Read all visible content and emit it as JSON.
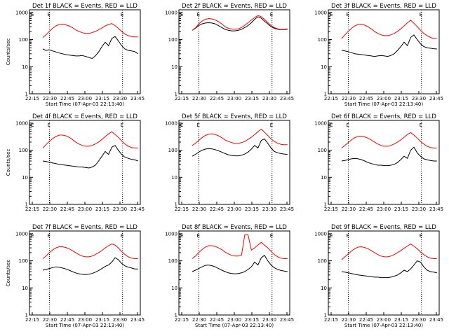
{
  "chart_data": [
    {
      "type": "line",
      "title": "Det 1f BLACK = Events, RED = LLD",
      "xlabel": "Start Time (07-Apr-03 22:13:40)",
      "ylabel": "Counts/sec",
      "series": [
        {
          "color": "#000000",
          "values": [
            45,
            40,
            42,
            38,
            35,
            32,
            30,
            28,
            27,
            26,
            25,
            25,
            26,
            24,
            22,
            20,
            25,
            35,
            55,
            80,
            60,
            110,
            130,
            90,
            60,
            45,
            40,
            38,
            36,
            30
          ]
        },
        {
          "color": "#ff0000",
          "values": [
            120,
            150,
            200,
            260,
            320,
            360,
            370,
            350,
            320,
            280,
            230,
            200,
            180,
            170,
            170,
            180,
            200,
            230,
            270,
            320,
            360,
            390,
            330,
            260,
            200,
            160,
            140,
            130,
            125,
            125
          ]
        }
      ]
    },
    {
      "type": "line",
      "title": "Det 2f BLACK = Events, RED = LLD",
      "xlabel": "",
      "ylabel": "",
      "series": [
        {
          "color": "#000000",
          "values": [
            220,
            260,
            330,
            380,
            410,
            420,
            410,
            380,
            330,
            280,
            240,
            220,
            210,
            210,
            220,
            240,
            280,
            330,
            420,
            560,
            700,
            620,
            480,
            380,
            300,
            260,
            240,
            235,
            235,
            240
          ]
        },
        {
          "color": "#ff0000",
          "values": [
            220,
            270,
            380,
            480,
            560,
            600,
            580,
            530,
            460,
            380,
            300,
            260,
            245,
            240,
            250,
            280,
            340,
            420,
            530,
            650,
            780,
            700,
            560,
            430,
            330,
            280,
            250,
            240,
            240,
            250
          ]
        }
      ]
    },
    {
      "type": "line",
      "title": "Det 3f BLACK = Events, RED = LLD",
      "xlabel": "Start Time (07-Apr-03 22:13:40)",
      "ylabel": "",
      "series": [
        {
          "color": "#000000",
          "values": [
            40,
            38,
            36,
            33,
            30,
            29,
            28,
            27,
            26,
            25,
            24,
            25,
            26,
            25,
            24,
            26,
            30,
            40,
            55,
            80,
            60,
            120,
            150,
            100,
            70,
            55,
            50,
            48,
            46,
            45
          ]
        },
        {
          "color": "#ff0000",
          "values": [
            110,
            150,
            200,
            260,
            320,
            360,
            370,
            340,
            300,
            250,
            200,
            170,
            150,
            140,
            140,
            150,
            170,
            200,
            250,
            320,
            420,
            520,
            400,
            300,
            220,
            170,
            140,
            120,
            110,
            110
          ]
        }
      ]
    },
    {
      "type": "line",
      "title": "Det 4f BLACK = Events, RED = LLD",
      "xlabel": "",
      "ylabel": "Counts/sec",
      "series": [
        {
          "color": "#000000",
          "values": [
            40,
            38,
            36,
            34,
            32,
            30,
            29,
            28,
            27,
            26,
            25,
            24,
            24,
            23,
            22,
            24,
            28,
            40,
            60,
            90,
            70,
            130,
            150,
            100,
            70,
            55,
            50,
            46,
            44,
            40
          ]
        },
        {
          "color": "#ff0000",
          "values": [
            120,
            160,
            210,
            270,
            320,
            360,
            360,
            340,
            300,
            250,
            200,
            170,
            150,
            140,
            140,
            150,
            170,
            200,
            250,
            320,
            400,
            480,
            380,
            300,
            220,
            170,
            140,
            125,
            120,
            120
          ]
        }
      ]
    },
    {
      "type": "line",
      "title": "Det 5f BLACK = Events, RED = LLD",
      "xlabel": "",
      "ylabel": "",
      "series": [
        {
          "color": "#000000",
          "values": [
            60,
            70,
            85,
            100,
            110,
            115,
            112,
            105,
            95,
            85,
            75,
            68,
            64,
            62,
            62,
            65,
            72,
            85,
            110,
            150,
            120,
            230,
            260,
            180,
            120,
            90,
            80,
            75,
            72,
            70
          ]
        },
        {
          "color": "#ff0000",
          "values": [
            150,
            180,
            230,
            290,
            350,
            390,
            400,
            380,
            340,
            290,
            240,
            210,
            190,
            180,
            180,
            190,
            210,
            250,
            300,
            380,
            480,
            600,
            460,
            350,
            260,
            210,
            180,
            165,
            160,
            160
          ]
        }
      ]
    },
    {
      "type": "line",
      "title": "Det 6f BLACK = Events, RED = LLD",
      "xlabel": "",
      "ylabel": "",
      "series": [
        {
          "color": "#000000",
          "values": [
            40,
            42,
            45,
            48,
            50,
            48,
            45,
            40,
            35,
            32,
            30,
            28,
            28,
            27,
            27,
            28,
            30,
            35,
            45,
            60,
            50,
            100,
            130,
            80,
            60,
            48,
            44,
            42,
            40,
            40
          ]
        },
        {
          "color": "#ff0000",
          "values": [
            120,
            150,
            190,
            240,
            290,
            320,
            330,
            310,
            280,
            240,
            200,
            170,
            150,
            140,
            140,
            150,
            170,
            200,
            240,
            300,
            380,
            450,
            360,
            280,
            210,
            170,
            140,
            125,
            120,
            120
          ]
        }
      ]
    },
    {
      "type": "line",
      "title": "Det 7f BLACK = Events, RED = LLD",
      "xlabel": "Start Time (07-Apr-03 22:13:40)",
      "ylabel": "Counts/sec",
      "series": [
        {
          "color": "#000000",
          "values": [
            45,
            48,
            52,
            56,
            60,
            58,
            54,
            50,
            45,
            40,
            36,
            33,
            32,
            31,
            32,
            34,
            38,
            44,
            52,
            62,
            70,
            90,
            130,
            110,
            80,
            65,
            58,
            54,
            50,
            50
          ]
        },
        {
          "color": "#ff0000",
          "values": [
            120,
            150,
            200,
            250,
            300,
            330,
            330,
            310,
            280,
            240,
            200,
            170,
            150,
            140,
            140,
            150,
            170,
            200,
            240,
            300,
            360,
            420,
            380,
            300,
            220,
            170,
            140,
            125,
            120,
            120
          ]
        }
      ]
    },
    {
      "type": "line",
      "title": "Det 8f BLACK = Events, RED = LLD",
      "xlabel": "Start Time (07-Apr-03 22:13:40)",
      "ylabel": "",
      "series": [
        {
          "color": "#000000",
          "values": [
            40,
            45,
            52,
            60,
            68,
            70,
            66,
            60,
            52,
            45,
            40,
            36,
            34,
            33,
            34,
            36,
            40,
            48,
            60,
            90,
            70,
            130,
            160,
            100,
            70,
            55,
            48,
            44,
            42,
            40
          ]
        },
        {
          "color": "#ff0000",
          "values": [
            120,
            150,
            200,
            260,
            320,
            360,
            360,
            340,
            300,
            260,
            210,
            180,
            160,
            150,
            150,
            160,
            900,
            900,
            250,
            300,
            380,
            480,
            380,
            300,
            220,
            170,
            140,
            125,
            120,
            120
          ]
        }
      ]
    },
    {
      "type": "line",
      "title": "Det 9f BLACK = Events, RED = LLD",
      "xlabel": "Start Time (07-Apr-03 22:13:40)",
      "ylabel": "",
      "series": [
        {
          "color": "#000000",
          "values": [
            40,
            38,
            36,
            34,
            32,
            30,
            29,
            28,
            27,
            26,
            25,
            25,
            24,
            24,
            24,
            25,
            27,
            30,
            36,
            45,
            40,
            50,
            70,
            100,
            90,
            60,
            45,
            40,
            38,
            36
          ]
        },
        {
          "color": "#ff0000",
          "values": [
            110,
            140,
            180,
            230,
            280,
            320,
            330,
            310,
            280,
            240,
            200,
            170,
            150,
            140,
            140,
            150,
            170,
            200,
            240,
            290,
            350,
            420,
            350,
            280,
            210,
            170,
            140,
            125,
            120,
            120
          ]
        }
      ]
    }
  ],
  "axes": {
    "x_ticks": [
      "22:15",
      "22:30",
      "22:45",
      "23:00",
      "23:15",
      "23:30",
      "23:45"
    ],
    "y_ticks": [
      "1",
      "10",
      "100",
      "1000"
    ],
    "marker_label": "E"
  }
}
